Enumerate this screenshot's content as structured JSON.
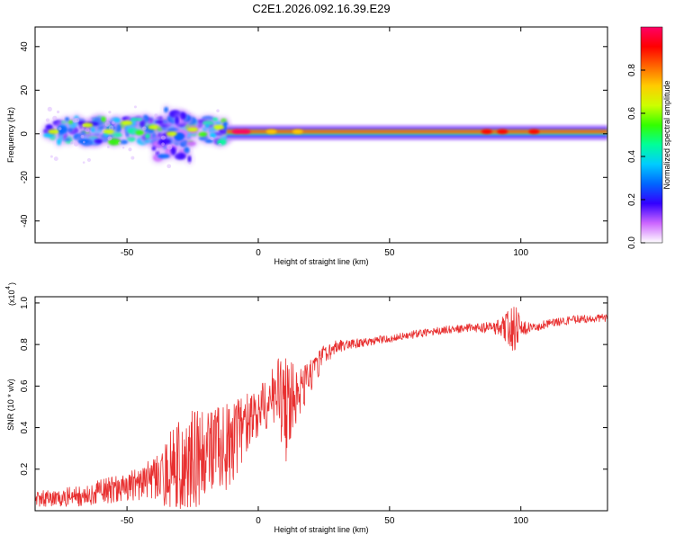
{
  "title": "C2E1.2026.092.16.39.E29",
  "colors": {
    "background": "#ffffff",
    "axis": "#000000",
    "snr_line": "#e83030",
    "spectrogram_floor": "#ffffff"
  },
  "colorbar": {
    "label": "Normalized spectral amplitude",
    "range": [
      0,
      1
    ],
    "ticks": [
      "0.0",
      "0.2",
      "0.4",
      "0.6",
      "0.8"
    ],
    "tick_values": [
      0,
      0.2,
      0.4,
      0.6,
      0.8
    ],
    "colormap": [
      "#ffffff",
      "#cc66ff",
      "#3300ff",
      "#0066ff",
      "#00ccff",
      "#00ff99",
      "#33ff00",
      "#ccff00",
      "#ffcc00",
      "#ff6600",
      "#ff0000",
      "#ff0066"
    ]
  },
  "chart_data": [
    {
      "type": "heatmap",
      "name": "spectrogram",
      "xlabel": "Height of straight line (km)",
      "ylabel": "Frequency (Hz)",
      "xlim": [
        -85,
        133
      ],
      "ylim": [
        -50,
        49
      ],
      "x_ticks": [
        "-50",
        "0",
        "50",
        "100"
      ],
      "x_tick_values": [
        -50,
        0,
        50,
        100
      ],
      "y_ticks": [
        "-40",
        "-20",
        "0",
        "20",
        "40"
      ],
      "y_tick_values": [
        -40,
        -20,
        0,
        20,
        40
      ],
      "bands": [
        {
          "x_start": -80,
          "x_end": -12,
          "f_min": -4,
          "f_max": 7,
          "amplitude": 0.45,
          "style": "patchy"
        },
        {
          "x_start": -40,
          "x_end": -25,
          "f_min": -12,
          "f_max": 11,
          "amplitude": 0.25,
          "style": "patchy"
        },
        {
          "x_start": -12,
          "x_end": 133,
          "f_min": -2,
          "f_max": 3,
          "amplitude": 0.4,
          "style": "continuous"
        },
        {
          "x_start": -12,
          "x_end": 133,
          "f_min": 0,
          "f_max": 2,
          "amplitude": 0.85,
          "style": "ridge"
        }
      ],
      "hot_spots": [
        {
          "x": -78,
          "f": 1,
          "amplitude": 0.6
        },
        {
          "x": -65,
          "f": 4,
          "amplitude": 0.6
        },
        {
          "x": -57,
          "f": 1,
          "amplitude": 0.6
        },
        {
          "x": -50,
          "f": 5,
          "amplitude": 0.6
        },
        {
          "x": -40,
          "f": 3,
          "amplitude": 0.6
        },
        {
          "x": -33,
          "f": 0,
          "amplitude": 0.6
        },
        {
          "x": -25,
          "f": 2,
          "amplitude": 0.6
        },
        {
          "x": -15,
          "f": 3,
          "amplitude": 0.6
        },
        {
          "x": -8,
          "f": 1,
          "amplitude": 1.0
        },
        {
          "x": -5,
          "f": 1,
          "amplitude": 1.0
        },
        {
          "x": 5,
          "f": 1,
          "amplitude": 0.7
        },
        {
          "x": 15,
          "f": 1,
          "amplitude": 0.7
        },
        {
          "x": 87,
          "f": 1,
          "amplitude": 0.9
        },
        {
          "x": 93,
          "f": 1,
          "amplitude": 0.9
        },
        {
          "x": 105,
          "f": 1,
          "amplitude": 0.9
        }
      ]
    },
    {
      "type": "line",
      "name": "snr",
      "xlabel": "Height of straight line (km)",
      "ylabel": "SNR (10 * v/v)",
      "scale_label": "(x10",
      "scale_exponent": "4",
      "xlim": [
        -85,
        133
      ],
      "ylim": [
        0,
        1.03
      ],
      "x_ticks": [
        "-50",
        "0",
        "50",
        "100"
      ],
      "x_tick_values": [
        -50,
        0,
        50,
        100
      ],
      "y_ticks": [
        "0.2",
        "0.4",
        "0.6",
        "0.8",
        "1.0"
      ],
      "y_tick_values": [
        0.2,
        0.4,
        0.6,
        0.8,
        1.0
      ],
      "series": [
        {
          "name": "SNR",
          "envelope_x": [
            -85,
            -80,
            -70,
            -60,
            -50,
            -40,
            -35,
            -30,
            -25,
            -20,
            -15,
            -10,
            -5,
            0,
            5,
            8,
            10,
            15,
            20,
            25,
            30,
            40,
            50,
            60,
            70,
            80,
            90,
            95,
            97,
            100,
            105,
            110,
            120,
            133
          ],
          "envelope_mean": [
            0.06,
            0.06,
            0.07,
            0.09,
            0.12,
            0.15,
            0.18,
            0.22,
            0.25,
            0.28,
            0.3,
            0.32,
            0.42,
            0.48,
            0.55,
            0.56,
            0.5,
            0.55,
            0.65,
            0.75,
            0.79,
            0.81,
            0.83,
            0.85,
            0.87,
            0.88,
            0.88,
            0.89,
            0.88,
            0.88,
            0.88,
            0.9,
            0.92,
            0.93
          ],
          "envelope_spread": [
            0.04,
            0.04,
            0.05,
            0.06,
            0.07,
            0.1,
            0.18,
            0.22,
            0.25,
            0.22,
            0.2,
            0.22,
            0.15,
            0.12,
            0.14,
            0.2,
            0.3,
            0.12,
            0.08,
            0.05,
            0.03,
            0.02,
            0.02,
            0.02,
            0.02,
            0.02,
            0.03,
            0.08,
            0.15,
            0.04,
            0.02,
            0.02,
            0.02,
            0.02
          ]
        }
      ]
    }
  ]
}
